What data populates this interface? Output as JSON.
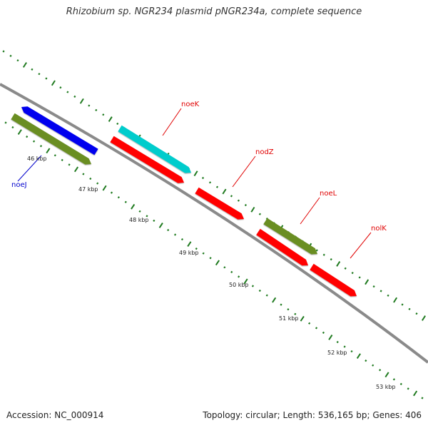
{
  "title": "Rhizobium sp. NGR234 plasmid pNGR234a, complete sequence",
  "footer": {
    "accession": "Accession: NC_000914",
    "stats": "Topology: circular; Length: 536,165 bp; Genes: 406"
  },
  "colors": {
    "backbone": "#8a8a8a",
    "ticks": "#1f7a1f",
    "gene_label": "#e00000",
    "gene_label_blue": "#0000cc",
    "red": "#ff0000",
    "cyan": "#00cccc",
    "olive": "#6b8e23",
    "blue": "#0000ee"
  },
  "map": {
    "scale_labels": [
      "46 kbp",
      "47 kbp",
      "48 kbp",
      "49 kbp",
      "50 kbp",
      "51 kbp",
      "52 kbp",
      "53 kbp"
    ],
    "genes": [
      {
        "name": "noeJ",
        "color": "blue",
        "strand": "reverse",
        "label_color": "gene_label_blue"
      },
      {
        "name": "",
        "color": "olive",
        "strand": "forward"
      },
      {
        "name": "noeK",
        "color": "cyan",
        "strand": "forward",
        "label_color": "gene_label"
      },
      {
        "name": "",
        "color": "red",
        "strand": "forward"
      },
      {
        "name": "nodZ",
        "color": "red",
        "strand": "forward",
        "label_color": "gene_label"
      },
      {
        "name": "noeL",
        "color": "olive",
        "strand": "forward",
        "label_color": "gene_label"
      },
      {
        "name": "",
        "color": "red",
        "strand": "forward"
      },
      {
        "name": "nolK",
        "color": "red",
        "strand": "forward",
        "label_color": "gene_label"
      }
    ]
  }
}
